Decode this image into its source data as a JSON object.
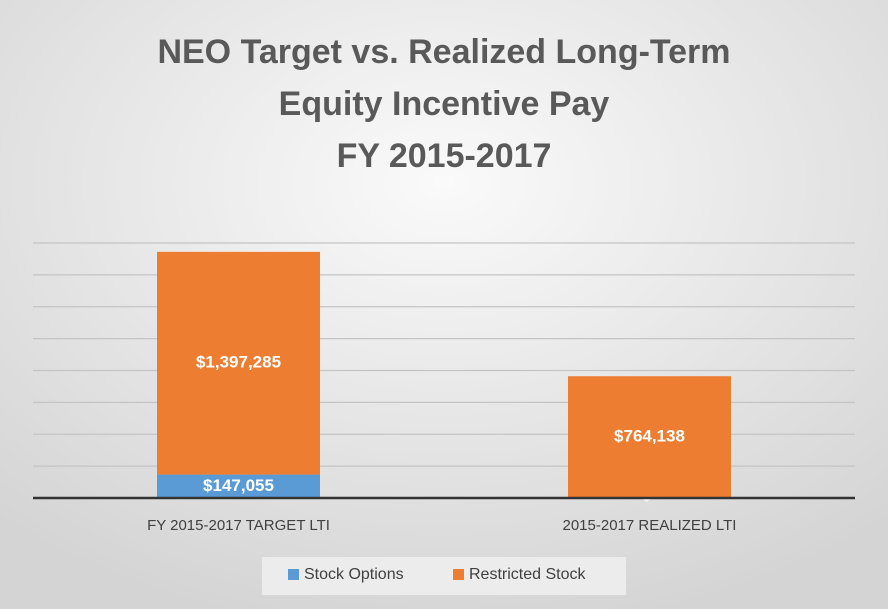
{
  "chart_data": {
    "type": "stacked_bar",
    "title": [
      "NEO Target vs. Realized Long-Term",
      "Equity Incentive Pay",
      "FY 2015-2017"
    ],
    "categories": [
      "FY 2015-2017 TARGET LTI",
      "2015-2017 REALIZED LTI"
    ],
    "series": [
      {
        "name": "Stock Options",
        "color": "#5b9bd5",
        "values": [
          147055,
          0
        ],
        "value_labels": [
          "$147,055",
          "$-"
        ]
      },
      {
        "name": "Restricted Stock",
        "color": "#ed7d31",
        "values": [
          1397285,
          764138
        ],
        "value_labels": [
          "$1,397,285",
          "$764,138"
        ]
      }
    ],
    "ylim": [
      0,
      1600000
    ],
    "yticks": [
      0,
      200000,
      400000,
      600000,
      800000,
      1000000,
      1200000,
      1400000,
      1600000
    ],
    "grid": true,
    "legend": "bottom"
  }
}
